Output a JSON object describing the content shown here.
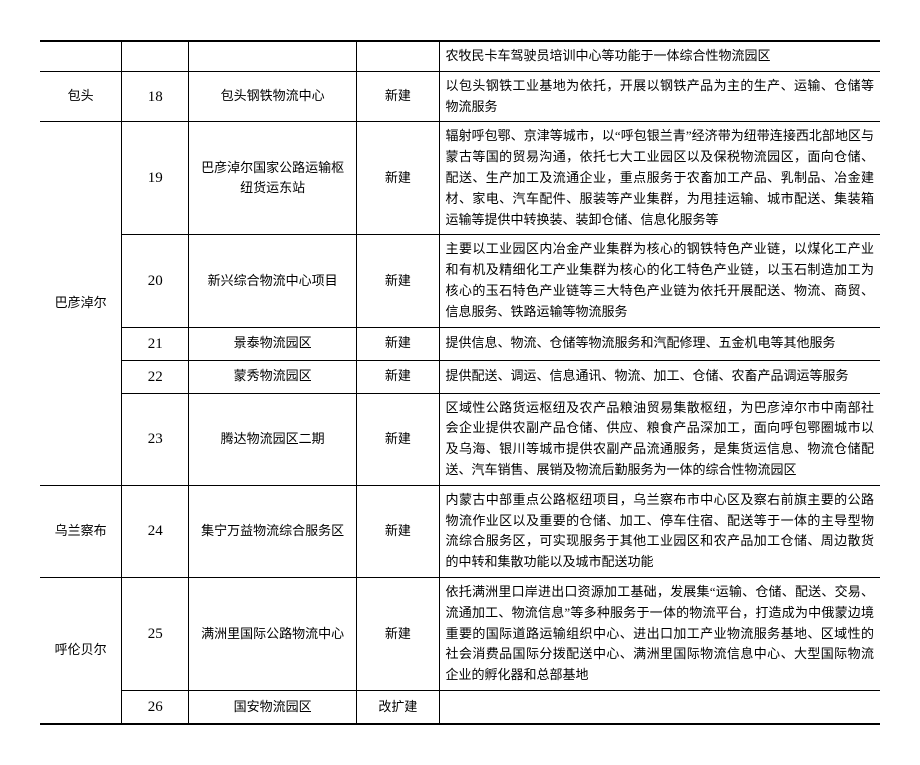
{
  "rows": [
    {
      "region": "",
      "num": "",
      "name": "",
      "type": "",
      "desc": "农牧民卡车驾驶员培训中心等功能于一体综合性物流园区"
    },
    {
      "region": "包头",
      "num": "18",
      "name": "包头钢铁物流中心",
      "type": "新建",
      "desc": "以包头钢铁工业基地为依托，开展以钢铁产品为主的生产、运输、仓储等物流服务"
    },
    {
      "region": "巴彦淖尔",
      "region_rowspan": 5,
      "num": "19",
      "name": "巴彦淖尔国家公路运输枢纽货运东站",
      "type": "新建",
      "desc": "辐射呼包鄂、京津等城市，以“呼包银兰青”经济带为纽带连接西北部地区与蒙古等国的贸易沟通，依托七大工业园区以及保税物流园区，面向仓储、配送、生产加工及流通企业，重点服务于农畜加工产品、乳制品、冶金建材、家电、汽车配件、服装等产业集群，为甩挂运输、城市配送、集装箱运输等提供中转换装、装卸仓储、信息化服务等"
    },
    {
      "num": "20",
      "name": "新兴综合物流中心项目",
      "type": "新建",
      "desc": "主要以工业园区内冶金产业集群为核心的钢铁特色产业链，以煤化工产业和有机及精细化工产业集群为核心的化工特色产业链，以玉石制造加工为核心的玉石特色产业链等三大特色产业链为依托开展配送、物流、商贸、信息服务、铁路运输等物流服务"
    },
    {
      "num": "21",
      "name": "景泰物流园区",
      "type": "新建",
      "desc": "提供信息、物流、仓储等物流服务和汽配修理、五金机电等其他服务"
    },
    {
      "num": "22",
      "name": "蒙秀物流园区",
      "type": "新建",
      "desc": "提供配送、调运、信息通讯、物流、加工、仓储、农畜产品调运等服务"
    },
    {
      "num": "23",
      "name": "腾达物流园区二期",
      "type": "新建",
      "desc": "区域性公路货运枢纽及农产品粮油贸易集散枢纽，为巴彦淖尔市中南部社会企业提供农副产品仓储、供应、粮食产品深加工，面向呼包鄂圈城市以及乌海、银川等城市提供农副产品流通服务，是集货运信息、物流仓储配送、汽车销售、展销及物流后勤服务为一体的综合性物流园区"
    },
    {
      "region": "乌兰察布",
      "num": "24",
      "name": "集宁万益物流综合服务区",
      "type": "新建",
      "desc": "内蒙古中部重点公路枢纽项目，乌兰察布市中心区及察右前旗主要的公路物流作业区以及重要的仓储、加工、停车住宿、配送等于一体的主导型物流综合服务区，可实现服务于其他工业园区和农产品加工仓储、周边散货的中转和集散功能以及城市配送功能"
    },
    {
      "region": "呼伦贝尔",
      "region_rowspan": 2,
      "num": "25",
      "name": "满洲里国际公路物流中心",
      "type": "新建",
      "desc": "依托满洲里口岸进出口资源加工基础，发展集“运输、仓储、配送、交易、流通加工、物流信息”等多种服务于一体的物流平台，打造成为中俄蒙边境重要的国际道路运输组织中心、进出口加工产业物流服务基地、区域性的社会消费品国际分拨配送中心、满洲里国际物流信息中心、大型国际物流企业的孵化器和总部基地"
    },
    {
      "num": "26",
      "name": "国安物流园区",
      "type": "改扩建",
      "desc": ""
    }
  ]
}
